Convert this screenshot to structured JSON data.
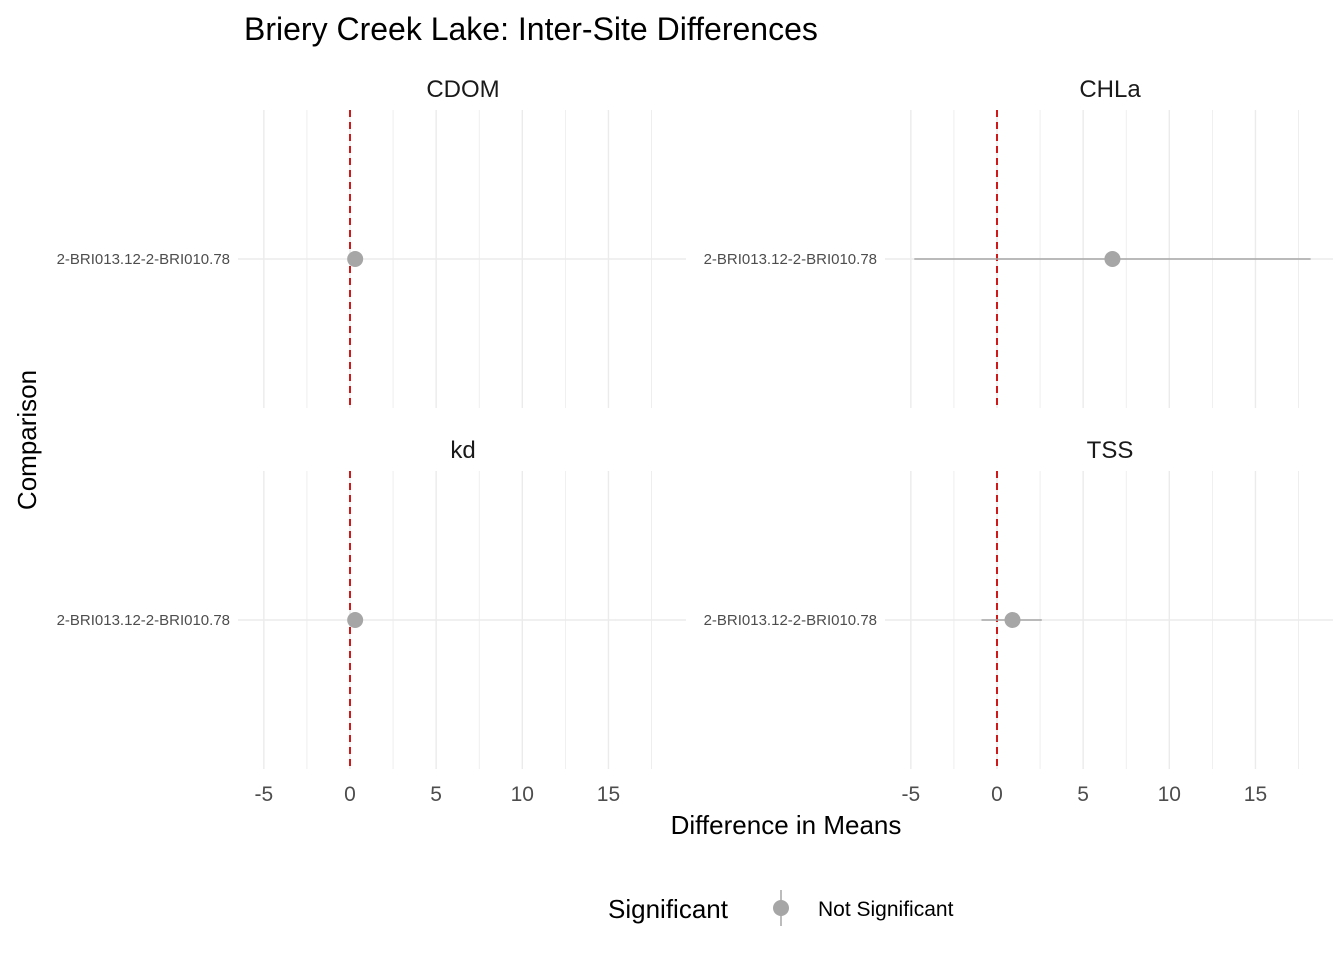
{
  "chart_data": {
    "type": "scatter",
    "title": "Briery Creek Lake: Inter-Site Differences",
    "xlabel": "Difference in Means",
    "ylabel": "Comparison",
    "xlim": [
      -6.5,
      19.5
    ],
    "x_ticks": [
      "-5",
      "0",
      "5",
      "10",
      "15"
    ],
    "x_tick_values": [
      -5,
      0,
      5,
      10,
      15
    ],
    "reference_line": {
      "x": 0,
      "color": "#cc0000",
      "style": "dashed"
    },
    "grid": true,
    "legend": {
      "title": "Significant",
      "position": "bottom",
      "entries": [
        {
          "label": "Not Significant",
          "color": "#a6a6a6"
        }
      ]
    },
    "facets": [
      {
        "name": "CDOM",
        "category": "2-BRI013.12-2-BRI010.78",
        "estimate": 0.3,
        "lower": 0.1,
        "upper": 0.5
      },
      {
        "name": "CHLa",
        "category": "2-BRI013.12-2-BRI010.78",
        "estimate": 6.7,
        "lower": -4.8,
        "upper": 18.2
      },
      {
        "name": "kd",
        "category": "2-BRI013.12-2-BRI010.78",
        "estimate": 0.3,
        "lower": 0.1,
        "upper": 0.5
      },
      {
        "name": "TSS",
        "category": "2-BRI013.12-2-BRI010.78",
        "estimate": 0.9,
        "lower": -0.9,
        "upper": 2.6
      }
    ]
  }
}
